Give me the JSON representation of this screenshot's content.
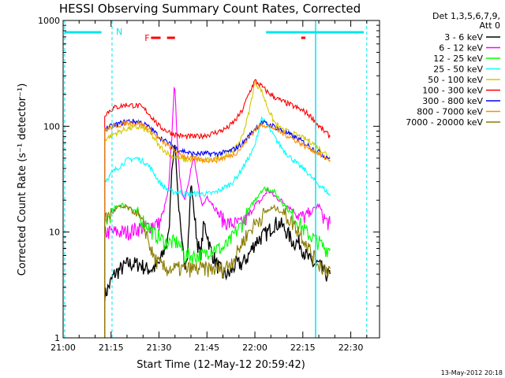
{
  "chart_data": {
    "type": "line",
    "title": "HESSI Observing Summary Count Rates, Corrected",
    "xlabel": "Start Time (12-May-12 20:59:42)",
    "ylabel": "Corrected Count Rate (s⁻¹ detector⁻¹)",
    "y_scale": "log",
    "xlim_minutes": [
      0,
      99
    ],
    "ylim": [
      1,
      1000
    ],
    "x_ticks": [
      "21:00",
      "21:15",
      "21:30",
      "21:45",
      "22:00",
      "22:15",
      "22:30"
    ],
    "y_ticks": [
      "1",
      "10",
      "100",
      "1000"
    ],
    "legend_header": [
      "Det 1,3,5,6,7,9,",
      "Att 0"
    ],
    "annotations": {
      "N": "N",
      "F": "F"
    },
    "footer_date": "13-May-2012 20:18",
    "colors": {
      "overlay": "#00e5ee",
      "flag": "#ff0000"
    },
    "series": [
      {
        "name": "3 - 6 keV",
        "color": "#000000",
        "x": [
          13,
          16,
          20,
          24,
          26,
          28,
          30,
          31,
          33,
          34,
          35,
          36,
          37,
          38,
          39,
          40,
          41,
          42,
          43,
          44,
          45,
          46,
          48,
          50,
          52,
          54,
          56,
          58,
          60,
          62,
          64,
          66,
          68,
          70,
          72,
          74,
          76,
          78,
          80,
          82,
          83.5
        ],
        "y": [
          2.5,
          4,
          5,
          5,
          4.5,
          4.5,
          5,
          6,
          9,
          40,
          70,
          20,
          8,
          5,
          7,
          30,
          15,
          8,
          6,
          12,
          10,
          7,
          5,
          4,
          4,
          5,
          5,
          6,
          8,
          9,
          10,
          12,
          12,
          10,
          8,
          8,
          6,
          5,
          5,
          4,
          4
        ]
      },
      {
        "name": "6 - 12 keV",
        "color": "#ff00ff",
        "x": [
          13,
          16,
          20,
          24,
          26,
          28,
          30,
          31,
          33,
          34,
          34.8,
          35.5,
          36.5,
          38,
          40,
          41,
          42,
          43,
          44,
          45,
          46,
          48,
          50,
          52,
          54,
          56,
          58,
          60,
          62,
          64,
          66,
          68,
          70,
          72,
          74,
          76,
          78,
          80,
          82,
          83.5
        ],
        "y": [
          10,
          10,
          10,
          11,
          11,
          12,
          12,
          14,
          25,
          80,
          270,
          100,
          30,
          20,
          40,
          50,
          30,
          20,
          18,
          22,
          20,
          16,
          13,
          12,
          12,
          12,
          14,
          18,
          20,
          25,
          22,
          20,
          18,
          16,
          14,
          14,
          16,
          18,
          13,
          12
        ]
      },
      {
        "name": "12 - 25 keV",
        "color": "#00ff00",
        "x": [
          13,
          15,
          17,
          20,
          23,
          26,
          28,
          30,
          32,
          34,
          35,
          36,
          37,
          38,
          40,
          42,
          44,
          46,
          48,
          50,
          52,
          54,
          56,
          58,
          60,
          62,
          64,
          66,
          68,
          70,
          72,
          74,
          76,
          78,
          80,
          82,
          83.5
        ],
        "y": [
          12,
          15,
          18,
          18,
          15,
          12,
          10,
          9,
          8,
          8,
          8,
          8,
          7,
          6,
          6,
          6,
          6,
          7,
          7,
          7,
          8,
          10,
          12,
          16,
          20,
          25,
          26,
          24,
          20,
          17,
          14,
          12,
          10,
          9,
          8,
          7,
          7
        ]
      },
      {
        "name": "25 - 50 keV",
        "color": "#00ffff",
        "x": [
          13,
          16,
          20,
          23,
          26,
          28,
          30,
          32,
          34,
          36,
          38,
          40,
          42,
          44,
          46,
          48,
          50,
          52,
          54,
          56,
          58,
          60,
          62,
          64,
          66,
          68,
          70,
          72,
          74,
          76,
          78,
          80,
          82,
          83.5
        ],
        "y": [
          30,
          38,
          48,
          50,
          45,
          38,
          30,
          26,
          24,
          24,
          23,
          23,
          23,
          23,
          23,
          24,
          26,
          28,
          32,
          40,
          50,
          65,
          120,
          100,
          80,
          65,
          55,
          48,
          42,
          38,
          32,
          28,
          25,
          22
        ]
      },
      {
        "name": "50 - 100 keV",
        "color": "#d4c800",
        "x": [
          13,
          16,
          20,
          24,
          26,
          28,
          30,
          32,
          34,
          36,
          38,
          40,
          42,
          44,
          46,
          48,
          50,
          52,
          54,
          56,
          58,
          60,
          62,
          64,
          66,
          68,
          70,
          72,
          74,
          76,
          78,
          80,
          82,
          83.5
        ],
        "y": [
          75,
          85,
          95,
          98,
          92,
          80,
          65,
          58,
          52,
          50,
          48,
          48,
          48,
          48,
          48,
          50,
          52,
          56,
          62,
          80,
          130,
          260,
          220,
          150,
          110,
          95,
          90,
          85,
          80,
          75,
          70,
          62,
          56,
          50
        ]
      },
      {
        "name": "100 - 300 keV",
        "color": "#ff0000",
        "x": [
          13,
          16,
          20,
          24,
          26,
          28,
          30,
          32,
          34,
          36,
          38,
          40,
          42,
          44,
          46,
          48,
          50,
          52,
          54,
          56,
          58,
          60,
          62,
          64,
          66,
          68,
          70,
          72,
          74,
          76,
          78,
          80,
          82,
          83.5
        ],
        "y": [
          130,
          150,
          160,
          155,
          140,
          120,
          100,
          92,
          86,
          82,
          80,
          80,
          80,
          82,
          84,
          88,
          92,
          100,
          115,
          140,
          200,
          270,
          240,
          210,
          190,
          175,
          165,
          155,
          145,
          135,
          120,
          100,
          88,
          80
        ]
      },
      {
        "name": "300 - 800 keV",
        "color": "#0000ff",
        "x": [
          13,
          16,
          20,
          24,
          26,
          28,
          30,
          32,
          34,
          36,
          38,
          40,
          42,
          44,
          46,
          48,
          50,
          52,
          54,
          56,
          58,
          60,
          62,
          64,
          66,
          68,
          70,
          72,
          74,
          76,
          78,
          80,
          82,
          83.5
        ],
        "y": [
          95,
          102,
          112,
          110,
          102,
          92,
          80,
          72,
          66,
          60,
          58,
          55,
          55,
          55,
          55,
          55,
          56,
          58,
          62,
          68,
          80,
          95,
          108,
          105,
          100,
          92,
          86,
          80,
          74,
          68,
          62,
          57,
          52,
          50
        ]
      },
      {
        "name": "800 - 7000 keV",
        "color": "#ff8c00",
        "x": [
          13,
          16,
          20,
          24,
          26,
          28,
          30,
          32,
          34,
          36,
          38,
          40,
          42,
          44,
          46,
          48,
          50,
          52,
          54,
          56,
          58,
          60,
          62,
          64,
          66,
          68,
          70,
          72,
          74,
          76,
          78,
          80,
          82,
          83.5
        ],
        "y": [
          92,
          100,
          108,
          106,
          98,
          88,
          76,
          68,
          62,
          56,
          52,
          50,
          49,
          48,
          48,
          48,
          50,
          52,
          56,
          64,
          78,
          92,
          104,
          102,
          96,
          88,
          82,
          76,
          70,
          64,
          60,
          55,
          50,
          48
        ]
      },
      {
        "name": "7000 - 20000 keV",
        "color": "#8b7d00",
        "x": [
          13,
          15,
          17,
          20,
          23,
          26,
          28,
          30,
          32,
          34,
          36,
          38,
          40,
          42,
          44,
          46,
          48,
          50,
          52,
          54,
          56,
          58,
          60,
          62,
          64,
          66,
          68,
          70,
          72,
          74,
          76,
          78,
          80,
          82,
          83.5
        ],
        "y": [
          13,
          15,
          17,
          17,
          15,
          10,
          6,
          5,
          4.5,
          4.5,
          4.5,
          4.5,
          4.5,
          4.5,
          4.5,
          4.5,
          4.5,
          4.5,
          5,
          6,
          8,
          10,
          12,
          14,
          16,
          17,
          16,
          14,
          12,
          10,
          8,
          6,
          5,
          4.5,
          4.5
        ]
      }
    ]
  }
}
